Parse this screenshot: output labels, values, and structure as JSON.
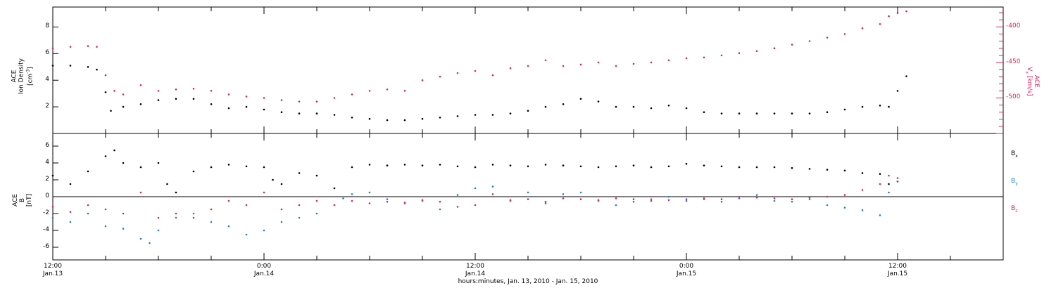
{
  "chart_data": [
    {
      "type": "scatter",
      "panel": "top",
      "ylabel_left_lines": [
        "ACE",
        "Ion Density",
        "[cm-3]"
      ],
      "ylabel_right_lines": [
        "ACE",
        "Vx [km/s]"
      ],
      "left_axis": {
        "ticks": [
          2,
          4,
          6,
          8
        ],
        "ylim": [
          0,
          9.5
        ]
      },
      "right_axis": {
        "ticks": [
          -400,
          -450,
          -500
        ],
        "ylim": [
          -550,
          -372
        ]
      },
      "x_unit": "hours from Jan. 13 12:00",
      "xlim": [
        0,
        54
      ],
      "series": [
        {
          "label": "Ion Density (left axis)",
          "color": "#000000",
          "points": [
            [
              0,
              5.1
            ],
            [
              1,
              5.1
            ],
            [
              2,
              5.0
            ],
            [
              2.5,
              4.8
            ],
            [
              3,
              3.1
            ],
            [
              3.3,
              1.7
            ],
            [
              4,
              2.0
            ],
            [
              5,
              2.2
            ],
            [
              6,
              2.5
            ],
            [
              7,
              2.6
            ],
            [
              8,
              2.6
            ],
            [
              9,
              2.2
            ],
            [
              10,
              1.9
            ],
            [
              11,
              2.0
            ],
            [
              12,
              1.8
            ],
            [
              13,
              1.6
            ],
            [
              14,
              1.5
            ],
            [
              15,
              1.5
            ],
            [
              16,
              1.4
            ],
            [
              17,
              1.2
            ],
            [
              18,
              1.1
            ],
            [
              19,
              1.0
            ],
            [
              20,
              1.0
            ],
            [
              21,
              1.1
            ],
            [
              22,
              1.2
            ],
            [
              23,
              1.3
            ],
            [
              24,
              1.4
            ],
            [
              25,
              1.4
            ],
            [
              26,
              1.5
            ],
            [
              27,
              1.7
            ],
            [
              28,
              2.0
            ],
            [
              29,
              2.2
            ],
            [
              30,
              2.6
            ],
            [
              31,
              2.4
            ],
            [
              32,
              2.0
            ],
            [
              33,
              2.0
            ],
            [
              34,
              1.9
            ],
            [
              35,
              2.1
            ],
            [
              36,
              1.9
            ],
            [
              37,
              1.6
            ],
            [
              38,
              1.5
            ],
            [
              39,
              1.5
            ],
            [
              40,
              1.5
            ],
            [
              41,
              1.5
            ],
            [
              42,
              1.5
            ],
            [
              43,
              1.5
            ],
            [
              44,
              1.6
            ],
            [
              45,
              1.8
            ],
            [
              46,
              2.0
            ],
            [
              47,
              2.1
            ],
            [
              47.5,
              2.0
            ],
            [
              48,
              3.2
            ],
            [
              48.5,
              4.3
            ]
          ]
        },
        {
          "label": "Vx (right axis)",
          "color": "#e0235c",
          "points": [
            [
              0,
              -430
            ],
            [
              1,
              -428
            ],
            [
              2,
              -427
            ],
            [
              2.5,
              -428
            ],
            [
              3,
              -468
            ],
            [
              3.5,
              -490
            ],
            [
              4,
              -495
            ],
            [
              5,
              -482
            ],
            [
              6,
              -490
            ],
            [
              7,
              -488
            ],
            [
              8,
              -487
            ],
            [
              9,
              -490
            ],
            [
              10,
              -495
            ],
            [
              11,
              -498
            ],
            [
              12,
              -500
            ],
            [
              13,
              -503
            ],
            [
              14,
              -505
            ],
            [
              15,
              -505
            ],
            [
              16,
              -500
            ],
            [
              17,
              -495
            ],
            [
              18,
              -490
            ],
            [
              19,
              -488
            ],
            [
              20,
              -490
            ],
            [
              21,
              -475
            ],
            [
              22,
              -470
            ],
            [
              23,
              -465
            ],
            [
              24,
              -462
            ],
            [
              25,
              -468
            ],
            [
              26,
              -458
            ],
            [
              27,
              -455
            ],
            [
              28,
              -447
            ],
            [
              29,
              -455
            ],
            [
              30,
              -453
            ],
            [
              31,
              -450
            ],
            [
              32,
              -455
            ],
            [
              33,
              -452
            ],
            [
              34,
              -450
            ],
            [
              35,
              -447
            ],
            [
              36,
              -444
            ],
            [
              37,
              -443
            ],
            [
              38,
              -440
            ],
            [
              39,
              -437
            ],
            [
              40,
              -434
            ],
            [
              41,
              -430
            ],
            [
              42,
              -425
            ],
            [
              43,
              -420
            ],
            [
              44,
              -415
            ],
            [
              45,
              -410
            ],
            [
              46,
              -402
            ],
            [
              47,
              -396
            ],
            [
              47.5,
              -385
            ],
            [
              48,
              -380
            ],
            [
              48.5,
              -378
            ]
          ]
        }
      ]
    },
    {
      "type": "scatter",
      "panel": "bottom",
      "ylabel_left_lines": [
        "ACE",
        "B",
        "[nT]"
      ],
      "left_axis": {
        "ticks": [
          -6,
          -4,
          -2,
          0,
          2,
          4,
          6
        ],
        "ylim": [
          -7.5,
          7.5
        ]
      },
      "zero_line": true,
      "xlim": [
        0,
        54
      ],
      "series": [
        {
          "name": "Bx",
          "color": "#000000",
          "points": [
            [
              0,
              2.5
            ],
            [
              1,
              1.5
            ],
            [
              2,
              3.0
            ],
            [
              3,
              4.8
            ],
            [
              3.5,
              5.5
            ],
            [
              4,
              4.0
            ],
            [
              5,
              3.5
            ],
            [
              6,
              4.0
            ],
            [
              6.5,
              1.5
            ],
            [
              7,
              0.5
            ],
            [
              8,
              3.0
            ],
            [
              9,
              3.5
            ],
            [
              10,
              3.8
            ],
            [
              11,
              3.6
            ],
            [
              12,
              3.5
            ],
            [
              12.5,
              2.0
            ],
            [
              13,
              1.5
            ],
            [
              14,
              2.8
            ],
            [
              15,
              2.5
            ],
            [
              16,
              1.0
            ],
            [
              17,
              3.5
            ],
            [
              18,
              3.8
            ],
            [
              19,
              3.7
            ],
            [
              20,
              3.8
            ],
            [
              21,
              3.7
            ],
            [
              22,
              3.8
            ],
            [
              23,
              3.6
            ],
            [
              24,
              3.5
            ],
            [
              25,
              3.8
            ],
            [
              26,
              3.7
            ],
            [
              27,
              3.6
            ],
            [
              28,
              3.8
            ],
            [
              29,
              3.7
            ],
            [
              30,
              3.6
            ],
            [
              31,
              3.5
            ],
            [
              32,
              3.6
            ],
            [
              33,
              3.7
            ],
            [
              34,
              3.5
            ],
            [
              35,
              3.6
            ],
            [
              36,
              3.9
            ],
            [
              37,
              3.7
            ],
            [
              38,
              3.6
            ],
            [
              39,
              3.5
            ],
            [
              40,
              3.5
            ],
            [
              41,
              3.5
            ],
            [
              42,
              3.4
            ],
            [
              43,
              3.3
            ],
            [
              44,
              3.2
            ],
            [
              45,
              3.1
            ],
            [
              46,
              2.8
            ],
            [
              47,
              2.7
            ],
            [
              47.5,
              1.5
            ],
            [
              48,
              1.8
            ]
          ]
        },
        {
          "name": "By",
          "color": "#1f7fd6",
          "points": [
            [
              0,
              -2.5
            ],
            [
              1,
              -3.0
            ],
            [
              2,
              -2.0
            ],
            [
              3,
              -3.5
            ],
            [
              4,
              -3.8
            ],
            [
              5,
              -5.0
            ],
            [
              5.5,
              -5.5
            ],
            [
              6,
              -4.0
            ],
            [
              7,
              -2.5
            ],
            [
              8,
              -2.0
            ],
            [
              9,
              -3.0
            ],
            [
              10,
              -3.5
            ],
            [
              11,
              -4.5
            ],
            [
              12,
              -4.0
            ],
            [
              13,
              -3.0
            ],
            [
              14,
              -2.5
            ],
            [
              15,
              -2.0
            ],
            [
              16,
              -1.0
            ],
            [
              16.5,
              -0.2
            ],
            [
              17,
              0.3
            ],
            [
              18,
              0.5
            ],
            [
              19,
              -0.3
            ],
            [
              20,
              -0.8
            ],
            [
              21,
              -0.5
            ],
            [
              22,
              -1.5
            ],
            [
              23,
              0.2
            ],
            [
              24,
              1.0
            ],
            [
              25,
              1.2
            ],
            [
              26,
              -0.5
            ],
            [
              27,
              0.5
            ],
            [
              28,
              -0.8
            ],
            [
              29,
              0.3
            ],
            [
              30,
              0.5
            ],
            [
              31,
              -0.5
            ],
            [
              32,
              -1.0
            ],
            [
              33,
              -0.6
            ],
            [
              34,
              -0.3
            ],
            [
              35,
              0.0
            ],
            [
              36,
              -0.5
            ],
            [
              37,
              -0.3
            ],
            [
              38,
              -0.6
            ],
            [
              39,
              -0.2
            ],
            [
              40,
              0.2
            ],
            [
              41,
              -0.5
            ],
            [
              42,
              -0.6
            ],
            [
              43,
              -0.3
            ],
            [
              44,
              -1.0
            ],
            [
              45,
              -1.3
            ],
            [
              46,
              -1.6
            ],
            [
              47,
              -2.2
            ],
            [
              47.5,
              0.5
            ],
            [
              48,
              1.8
            ]
          ]
        },
        {
          "name": "Bz",
          "color": "#e0235c",
          "points": [
            [
              0,
              -1.2
            ],
            [
              1,
              -1.8
            ],
            [
              2,
              -1.0
            ],
            [
              3,
              -1.5
            ],
            [
              4,
              -2.0
            ],
            [
              5,
              0.5
            ],
            [
              6,
              -2.5
            ],
            [
              7,
              -2.0
            ],
            [
              8,
              -2.5
            ],
            [
              9,
              -1.5
            ],
            [
              10,
              -0.5
            ],
            [
              11,
              -1.0
            ],
            [
              12,
              0.5
            ],
            [
              13,
              -1.5
            ],
            [
              14,
              -1.0
            ],
            [
              15,
              -0.5
            ],
            [
              16,
              -1.0
            ],
            [
              17,
              -0.5
            ],
            [
              18,
              -0.8
            ],
            [
              19,
              -0.6
            ],
            [
              20,
              -0.7
            ],
            [
              21,
              -0.4
            ],
            [
              22,
              -0.6
            ],
            [
              23,
              -1.2
            ],
            [
              24,
              -1.0
            ],
            [
              25,
              0.3
            ],
            [
              26,
              -0.4
            ],
            [
              27,
              -0.3
            ],
            [
              28,
              -0.6
            ],
            [
              29,
              -0.2
            ],
            [
              30,
              -0.3
            ],
            [
              31,
              -0.4
            ],
            [
              32,
              -0.2
            ],
            [
              33,
              -0.3
            ],
            [
              34,
              -0.5
            ],
            [
              35,
              -0.4
            ],
            [
              36,
              -0.3
            ],
            [
              37,
              -0.2
            ],
            [
              38,
              -0.3
            ],
            [
              39,
              0.0
            ],
            [
              40,
              -0.1
            ],
            [
              41,
              -0.2
            ],
            [
              42,
              -0.3
            ],
            [
              43,
              -0.1
            ],
            [
              44,
              0.0
            ],
            [
              45,
              0.2
            ],
            [
              46,
              0.8
            ],
            [
              47,
              1.5
            ],
            [
              47.5,
              2.5
            ],
            [
              48,
              2.2
            ]
          ]
        }
      ]
    }
  ],
  "x_ticks": [
    {
      "hours": 0,
      "time": "12:00",
      "date": "Jan.13"
    },
    {
      "hours": 12,
      "time": "0:00",
      "date": "Jan.14"
    },
    {
      "hours": 24,
      "time": "12:00",
      "date": "Jan.14"
    },
    {
      "hours": 36,
      "time": "0:00",
      "date": "Jan.15"
    },
    {
      "hours": 48,
      "time": "12:00",
      "date": "Jan.15"
    }
  ],
  "xlabel": "hours:minutes, Jan. 13, 2010 - Jan. 15, 2010",
  "labels": {
    "ace": "ACE",
    "ion_density": "Ion Density",
    "density_units_open": "[cm",
    "density_units_exp": "-3",
    "density_units_close": "]",
    "vx_units": "[km/s]",
    "vx_v": "V",
    "vx_sub": "x",
    "b": "B",
    "b_units": "[nT]",
    "b_letter": "B",
    "bx_sub": "x",
    "by_sub": "y",
    "bz_sub": "z"
  },
  "colors": {
    "black": "#000000",
    "blue": "#1f7fd6",
    "pink": "#e0235c"
  }
}
